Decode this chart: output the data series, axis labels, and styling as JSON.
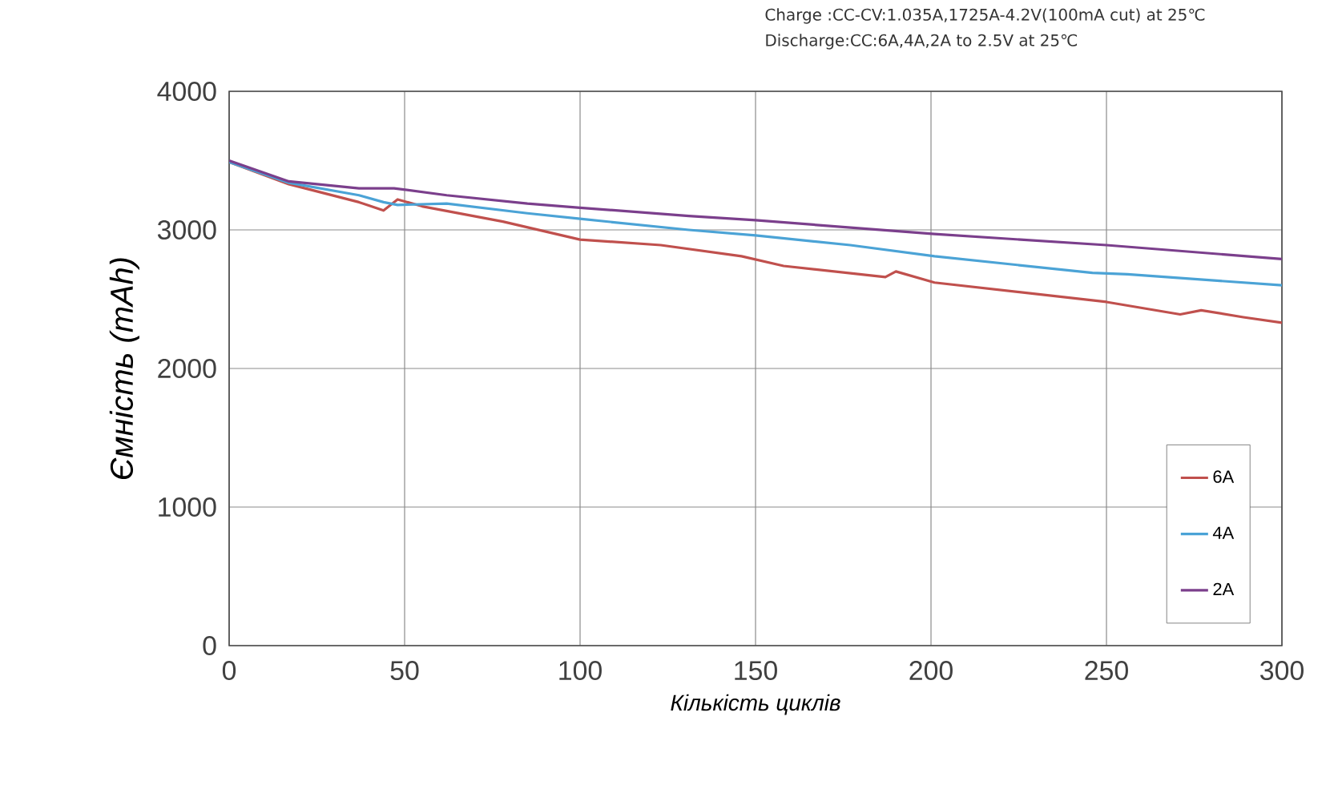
{
  "chart_data": {
    "type": "line",
    "xlabel": "Кількість циклів",
    "ylabel": "Ємність (mAh)",
    "annotations": [
      "Charge :CC-CV:1.035A,1725A-4.2V(100mA cut) at 25℃",
      "Discharge:CC:6A,4A,2A to 2.5V at 25℃"
    ],
    "xlim": [
      0,
      300
    ],
    "ylim": [
      0,
      4000
    ],
    "xticks": [
      0,
      50,
      100,
      150,
      200,
      250,
      300
    ],
    "yticks": [
      0,
      1000,
      2000,
      3000,
      4000
    ],
    "grid": true,
    "legend": "right",
    "marker": "none",
    "line_style": "solid",
    "series": [
      {
        "name": "6A",
        "color": "#c0504d",
        "x": [
          0,
          17,
          37,
          44,
          48,
          55,
          78,
          100,
          123,
          146,
          158,
          187,
          190,
          201,
          250,
          271,
          277,
          289,
          300
        ],
        "values": [
          3490,
          3330,
          3200,
          3140,
          3220,
          3170,
          3060,
          2930,
          2890,
          2810,
          2740,
          2660,
          2700,
          2620,
          2480,
          2390,
          2420,
          2370,
          2330
        ]
      },
      {
        "name": "4A",
        "color": "#4ba3d6",
        "x": [
          0,
          17,
          37,
          44,
          48,
          62,
          85,
          100,
          131,
          150,
          177,
          201,
          246,
          256,
          300
        ],
        "values": [
          3490,
          3340,
          3250,
          3200,
          3180,
          3190,
          3120,
          3080,
          3000,
          2960,
          2890,
          2810,
          2690,
          2680,
          2600
        ]
      },
      {
        "name": "2A",
        "color": "#7b3f8c",
        "x": [
          0,
          17,
          37,
          47,
          62,
          85,
          100,
          131,
          150,
          201,
          250,
          300
        ],
        "values": [
          3500,
          3350,
          3300,
          3300,
          3250,
          3190,
          3160,
          3100,
          3070,
          2970,
          2890,
          2790
        ]
      }
    ]
  }
}
